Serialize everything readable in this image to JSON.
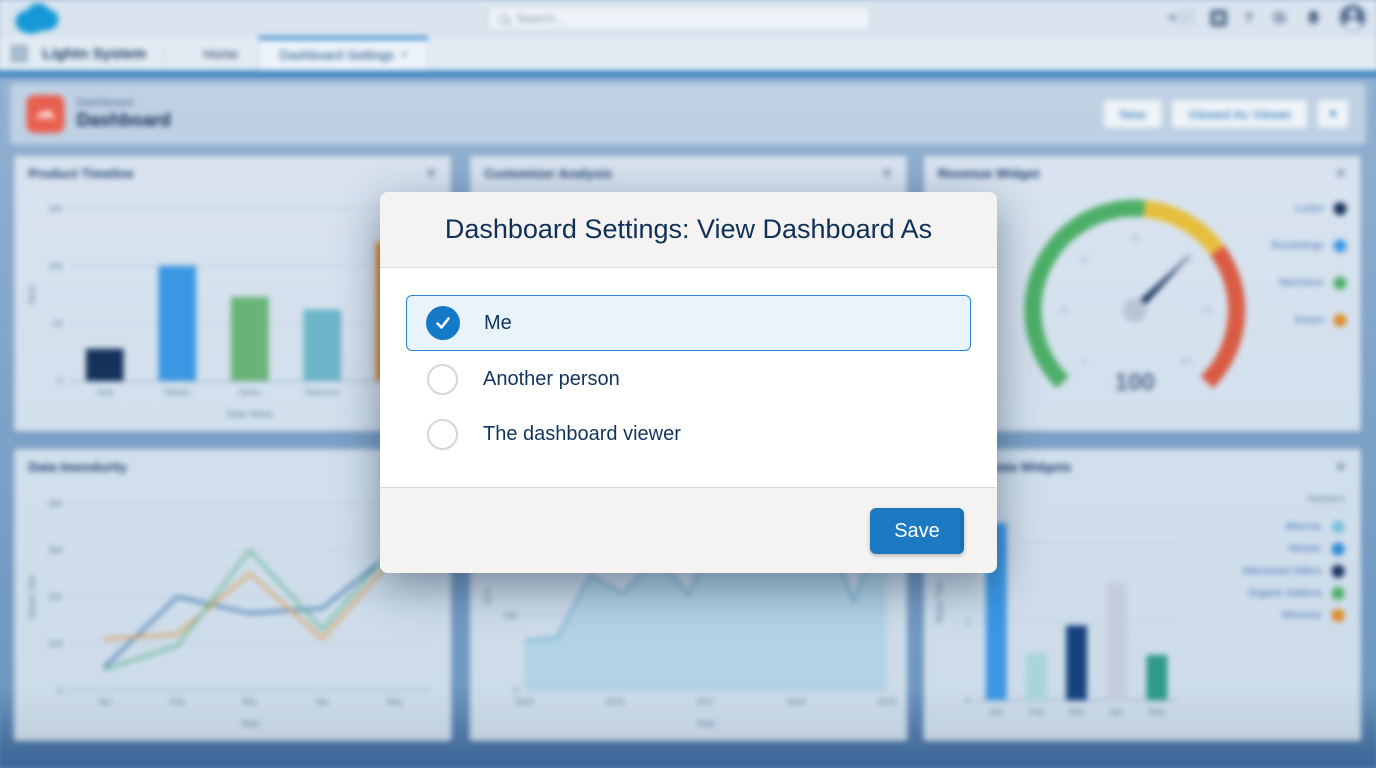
{
  "ui": {
    "close_glyph": "✕",
    "chevron_down": "▾",
    "plus_glyph": "+",
    "help_glyph": "?"
  },
  "global_nav": {
    "search_placeholder": "Search..."
  },
  "app_nav": {
    "app_name": "Lightn System",
    "tabs": [
      {
        "label": "Home",
        "active": false
      },
      {
        "label": "Dashboard Settings",
        "active": true
      }
    ]
  },
  "page_header": {
    "record_type": "Dashboard",
    "title": "Dashboard",
    "buttons": [
      {
        "label": "New"
      },
      {
        "label": "Viewed As Viewer"
      }
    ]
  },
  "widgets": [
    {
      "title": "Product Timeline"
    },
    {
      "title": "Customizer Analysis"
    },
    {
      "title": "Revenue Widget"
    },
    {
      "title": "Data Imendurity"
    },
    {
      "title": ""
    },
    {
      "title": "Current Data Widgets"
    }
  ],
  "modal": {
    "title": "Dashboard Settings: View Dashboard As",
    "options": [
      {
        "label": "Me",
        "selected": true
      },
      {
        "label": "Another person",
        "selected": false
      },
      {
        "label": "The dashboard viewer",
        "selected": false
      }
    ],
    "save_label": "Save"
  },
  "colors": {
    "accent_blue": "#1479c7",
    "save_button": "#1b7ac2",
    "selected_option_bg": "#e9f3fc",
    "dashboard_icon": "#e8604f",
    "gauge_green": "#4caf68",
    "gauge_yellow": "#e7bf3c",
    "gauge_red": "#d95b43"
  },
  "chart_data": [
    {
      "type": "bar",
      "title": "Product Timeline",
      "categories": [
        "Asia",
        "Westin",
        "Selos",
        "Namsurs",
        "Baro"
      ],
      "values": [
        28,
        100,
        73,
        62,
        121
      ],
      "colors": [
        "#16325c",
        "#3b97e3",
        "#69b377",
        "#6cb5c9",
        "#dd8b28"
      ],
      "ylim": [
        0,
        150
      ],
      "yticks": [
        0,
        50,
        100,
        150
      ],
      "xlabel": "Data Views",
      "ylabel": "Rand",
      "grid": true,
      "legend_position": "none"
    },
    {
      "type": "gauge",
      "title": "Revenue Widget",
      "value": 100,
      "display_value": "100",
      "min": 0,
      "max": 150,
      "segments": [
        {
          "to": 78,
          "color": "#4caf68"
        },
        {
          "to": 105,
          "color": "#e7bf3c"
        },
        {
          "to": 150,
          "color": "#d95b43"
        }
      ],
      "ticks": [
        0,
        25,
        50,
        75,
        100,
        125,
        150
      ],
      "legend_position": "right",
      "legend": [
        {
          "label": "Lustre",
          "color": "#16325c"
        },
        {
          "label": "Resolutings",
          "color": "#3b97e3"
        },
        {
          "label": "Warmions",
          "color": "#4caf68"
        },
        {
          "label": "Dosen",
          "color": "#dd8b28"
        }
      ]
    },
    {
      "type": "line",
      "title": "Data Imendurity",
      "categories": [
        "Jan",
        "Feb",
        "Mar",
        "Apr",
        "May"
      ],
      "series": [
        {
          "name": "series-blue",
          "color": "#3a74ad",
          "values": [
            50,
            200,
            165,
            175,
            300
          ]
        },
        {
          "name": "series-orange",
          "color": "#dd9f52",
          "values": [
            110,
            120,
            250,
            110,
            285
          ]
        },
        {
          "name": "series-green",
          "color": "#66b795",
          "values": [
            45,
            95,
            300,
            130,
            310
          ]
        }
      ],
      "ylim": [
        0,
        400
      ],
      "yticks": [
        0,
        100,
        200,
        300,
        400
      ],
      "xlabel": "Year",
      "ylabel": "Wagon Opts",
      "grid": true,
      "legend_position": "none"
    },
    {
      "type": "area",
      "title": "",
      "x_ticks": [
        "2015",
        "2016",
        "2017",
        "2018",
        "2019"
      ],
      "values": [
        330,
        355,
        770,
        650,
        890,
        640,
        1160,
        1230,
        905,
        1205,
        590,
        1240
      ],
      "ylim": [
        0,
        1250
      ],
      "yticks": [
        0,
        500,
        1000
      ],
      "ytick_labels": [
        "0",
        "500",
        "1,000"
      ],
      "xlabel": "Year",
      "ylabel": "Sum",
      "color": "#64a8cc",
      "fill": "#aed2e3",
      "grid": true,
      "legend_position": "none"
    },
    {
      "type": "bar",
      "title": "Current Data Widgets",
      "categories": [
        "Jan",
        "Feb",
        "Mar",
        "Apr",
        "May"
      ],
      "values": [
        4.5,
        1.2,
        1.9,
        3.0,
        1.15
      ],
      "colors": [
        "#3b97e3",
        "#a8d5d8",
        "#16437e",
        "#c3cdde",
        "#2e9a8a"
      ],
      "ylim": [
        0,
        5
      ],
      "yticks": [
        0,
        2,
        4
      ],
      "xlabel": "",
      "ylabel": "Wager Time",
      "grid": true,
      "legend_position": "right",
      "legend_title": "Numbers",
      "legend": [
        {
          "label": "Alternos",
          "color": "#7cc0dd"
        },
        {
          "label": "Wessin",
          "color": "#2f88d4"
        },
        {
          "label": "Warnesset Gillors",
          "color": "#16325c"
        },
        {
          "label": "Organic Gattena",
          "color": "#4caf68"
        },
        {
          "label": "Weruses",
          "color": "#dd8b28"
        }
      ]
    }
  ]
}
